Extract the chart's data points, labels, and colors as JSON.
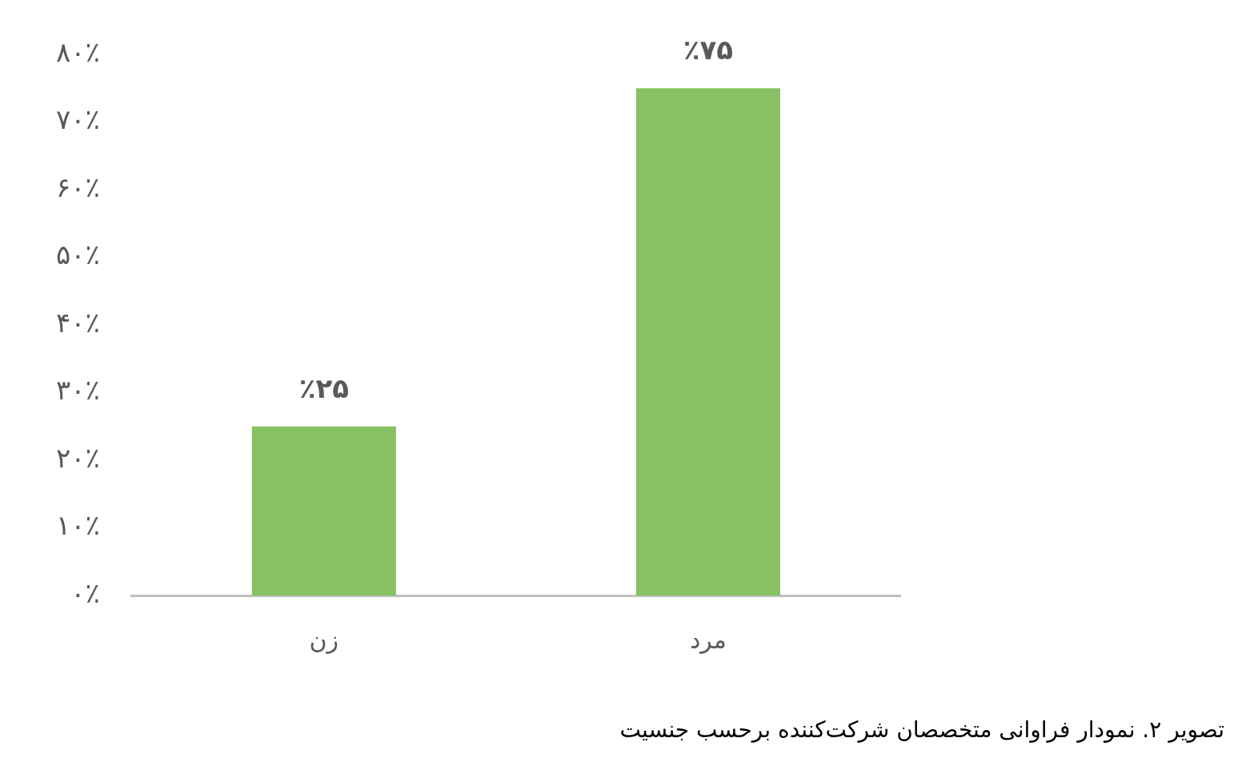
{
  "chart_data": {
    "type": "bar",
    "categories": [
      "زن",
      "مرد"
    ],
    "values": [
      25,
      75
    ],
    "value_labels": [
      "٪۲۵",
      "٪۷۵"
    ],
    "color": "#86c163",
    "ylim": [
      0,
      80
    ],
    "yticks": [
      {
        "value": 0,
        "label": "۰٪"
      },
      {
        "value": 10,
        "label": "۱۰٪"
      },
      {
        "value": 20,
        "label": "۲۰٪"
      },
      {
        "value": 30,
        "label": "۳۰٪"
      },
      {
        "value": 40,
        "label": "۴۰٪"
      },
      {
        "value": 50,
        "label": "۵۰٪"
      },
      {
        "value": 60,
        "label": "۶۰٪"
      },
      {
        "value": 70,
        "label": "۷۰٪"
      },
      {
        "value": 80,
        "label": "۸۰٪"
      }
    ],
    "annotations": [
      "تصویر ۲. نمودار فراوانی متخصصان شرکت‌کننده برحسب جنسیت"
    ]
  }
}
